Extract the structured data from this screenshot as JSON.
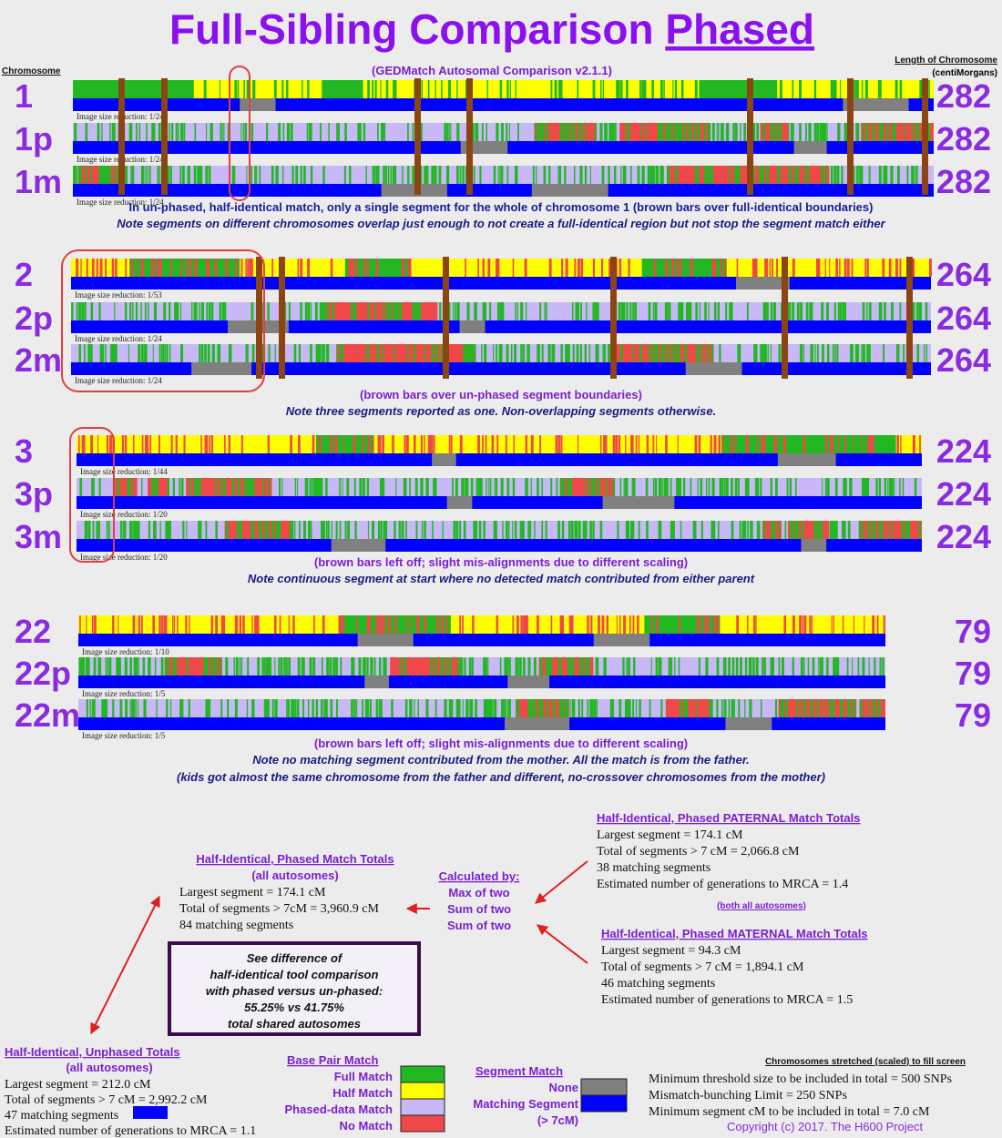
{
  "header": {
    "title_main": "Full-Sibling Comparison ",
    "title_underlined": "Phased",
    "chromosome_label": "Chromosome",
    "source": "(GEDMatch Autosomal Comparison v2.1.1)",
    "length_label": "Length of Chromosome",
    "length_unit": "(centiMorgans)"
  },
  "groups": [
    {
      "rows": [
        {
          "label": "1",
          "length": "282",
          "reduction": "Image size reduction: 1/24"
        },
        {
          "label": "1p",
          "length": "282",
          "reduction": "Image size reduction: 1/24"
        },
        {
          "label": "1m",
          "length": "282",
          "reduction": "Image size reduction: 1/24"
        }
      ],
      "captions": [
        "In un-phased, half-identical match, only a single segment for the whole of chromosome 1 (brown bars over full-identical boundaries)",
        "Note segments on different chromosomes overlap just enough to not create a full-identical region but not stop the segment match either"
      ]
    },
    {
      "rows": [
        {
          "label": "2",
          "length": "264",
          "reduction": "Image size reduction: 1/53"
        },
        {
          "label": "2p",
          "length": "264",
          "reduction": "Image size reduction: 1/24"
        },
        {
          "label": "2m",
          "length": "264",
          "reduction": "Image size reduction: 1/24"
        }
      ],
      "captions": [
        "(brown bars over un-phased segment boundaries)",
        "Note three segments reported as one. Non-overlapping segments otherwise."
      ]
    },
    {
      "rows": [
        {
          "label": "3",
          "length": "224",
          "reduction": "Image size reduction: 1/44"
        },
        {
          "label": "3p",
          "length": "224",
          "reduction": "Image size reduction: 1/20"
        },
        {
          "label": "3m",
          "length": "224",
          "reduction": "Image size reduction: 1/20"
        }
      ],
      "captions": [
        "(brown bars left off; slight mis-alignments due to different scaling)",
        "Note continuous segment at start where no detected match contributed from either parent"
      ]
    },
    {
      "rows": [
        {
          "label": "22",
          "length": "79",
          "reduction": "Image size reduction: 1/10"
        },
        {
          "label": "22p",
          "length": "79",
          "reduction": "Image size reduction: 1/5"
        },
        {
          "label": "22m",
          "length": "79",
          "reduction": "Image size reduction: 1/5"
        }
      ],
      "captions": [
        "(brown bars left off; slight mis-alignments due to different scaling)",
        "Note no matching segment contributed from the mother.  All the match is from the father.",
        "(kids got almost the same chromosome from the father and different, no-crossover chromosomes from the mother)"
      ]
    }
  ],
  "paternal": {
    "title": "Half-Identical, Phased PATERNAL Match Totals",
    "lines": [
      "Largest segment = 174.1 cM",
      "Total of segments > 7 cM = 2,066.8 cM",
      "38 matching segments",
      "Estimated number of generations to MRCA = 1.4"
    ],
    "note": "(both all autosomes)"
  },
  "phased": {
    "title": "Half-Identical, Phased Match Totals",
    "subtitle": "(all autosomes)",
    "lines": [
      "Largest segment = 174.1 cM",
      "Total of segments > 7cM = 3,960.9 cM",
      "84 matching segments"
    ]
  },
  "calculated": {
    "title": "Calculated by:",
    "lines": [
      "Max of two",
      "Sum of two",
      "Sum of two"
    ]
  },
  "maternal": {
    "title": "Half-Identical, Phased MATERNAL Match Totals",
    "lines": [
      "Largest segment = 94.3 cM",
      "Total of segments > 7 cM = 1,894.1 cM",
      "46 matching segments",
      "Estimated number of generations to MRCA = 1.5"
    ]
  },
  "difference": {
    "lines": [
      "See difference of",
      "half-identical tool comparison",
      "with phased versus un-phased:",
      "55.25%  vs  41.75%",
      "total shared autosomes"
    ]
  },
  "unphased": {
    "title": "Half-Identical, Unphased Totals",
    "subtitle": "(all autosomes)",
    "lines": [
      "Largest segment = 212.0 cM",
      "Total of segments > 7 cM = 2,992.2 cM",
      "47 matching segments",
      "Estimated number of generations to MRCA = 1.1"
    ]
  },
  "legend": {
    "base_pair_title": "Base Pair Match",
    "base_pair": [
      "Full Match",
      "Half Match",
      "Phased-data Match",
      "No Match"
    ],
    "segment_title": "Segment Match",
    "segment": [
      "None",
      "Matching Segment",
      "(> 7cM)"
    ]
  },
  "settings": {
    "title": "Chromosomes stretched (scaled) to fill screen",
    "lines": [
      "Minimum threshold size to be included in total = 500 SNPs",
      "Mismatch-bunching Limit = 250 SNPs",
      "Minimum segment cM to be included in total = 7.0 cM"
    ]
  },
  "copyright": "Copyright (c) 2017. The H600 Project"
}
